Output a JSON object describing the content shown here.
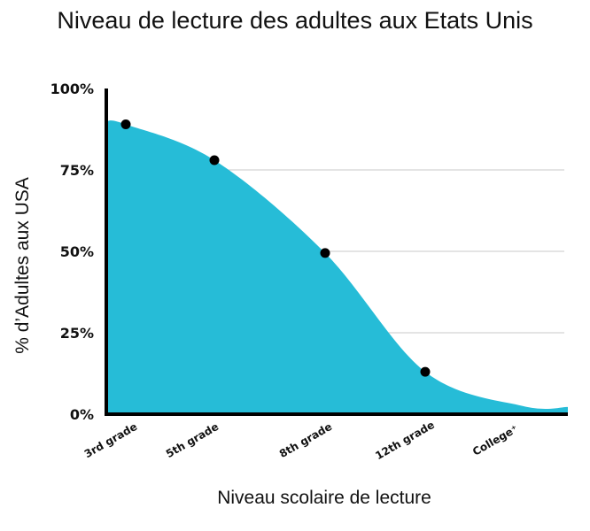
{
  "chart_data": {
    "type": "area",
    "title": "Niveau de lecture des adultes aux Etats Unis",
    "xlabel": "Niveau scolaire de lecture",
    "ylabel": "% d’Adultes aux USA",
    "categories": [
      "3rd grade",
      "5th grade",
      "8th grade",
      "12th grade",
      "College⁺"
    ],
    "y_tick_labels": [
      "100%",
      "75%",
      "50%",
      "25%",
      "0%"
    ],
    "ylim": [
      0,
      100
    ],
    "grid": true,
    "fill_color": "#26bcd7",
    "series": [
      {
        "values": [
          89,
          78,
          49.5,
          13,
          2.5
        ]
      }
    ],
    "points": [
      {
        "x": "3rd grade",
        "y": 89
      },
      {
        "x": "5th grade",
        "y": 78
      },
      {
        "x": "8th grade",
        "y": 49.5
      },
      {
        "x": "12th grade",
        "y": 13
      }
    ]
  }
}
